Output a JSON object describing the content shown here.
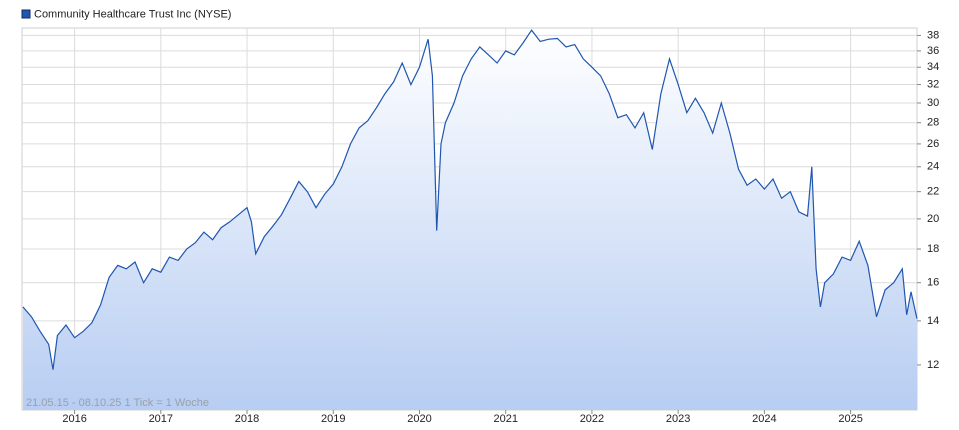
{
  "chart_data": {
    "type": "area",
    "legend": "Community Healthcare Trust Inc (NYSE)",
    "annotation": "21.05.15 - 08.10.25   1 Tick = 1 Woche",
    "color": "#1f56b0",
    "log_scale": true,
    "grid": true,
    "x": [
      2015.4,
      2015.5,
      2015.6,
      2015.7,
      2015.75,
      2015.8,
      2015.9,
      2016.0,
      2016.1,
      2016.2,
      2016.3,
      2016.4,
      2016.5,
      2016.6,
      2016.7,
      2016.8,
      2016.9,
      2017.0,
      2017.1,
      2017.2,
      2017.3,
      2017.4,
      2017.5,
      2017.6,
      2017.7,
      2017.8,
      2017.9,
      2018.0,
      2018.05,
      2018.1,
      2018.2,
      2018.3,
      2018.4,
      2018.5,
      2018.6,
      2018.7,
      2018.8,
      2018.9,
      2019.0,
      2019.1,
      2019.2,
      2019.3,
      2019.4,
      2019.5,
      2019.6,
      2019.7,
      2019.8,
      2019.9,
      2020.0,
      2020.1,
      2020.15,
      2020.2,
      2020.25,
      2020.3,
      2020.4,
      2020.5,
      2020.6,
      2020.7,
      2020.8,
      2020.9,
      2021.0,
      2021.1,
      2021.2,
      2021.3,
      2021.4,
      2021.5,
      2021.6,
      2021.7,
      2021.8,
      2021.9,
      2022.0,
      2022.1,
      2022.2,
      2022.3,
      2022.4,
      2022.5,
      2022.6,
      2022.7,
      2022.8,
      2022.9,
      2023.0,
      2023.1,
      2023.2,
      2023.3,
      2023.4,
      2023.5,
      2023.6,
      2023.7,
      2023.8,
      2023.9,
      2024.0,
      2024.1,
      2024.2,
      2024.3,
      2024.4,
      2024.5,
      2024.55,
      2024.6,
      2024.65,
      2024.7,
      2024.8,
      2024.9,
      2025.0,
      2025.1,
      2025.2,
      2025.3,
      2025.4,
      2025.5,
      2025.6,
      2025.65,
      2025.7,
      2025.77
    ],
    "values": [
      14.7,
      14.2,
      13.5,
      12.9,
      11.8,
      13.3,
      13.8,
      13.2,
      13.5,
      13.9,
      14.8,
      16.3,
      17.0,
      16.8,
      17.2,
      16.0,
      16.8,
      16.6,
      17.5,
      17.3,
      18.0,
      18.4,
      19.1,
      18.6,
      19.4,
      19.8,
      20.3,
      20.8,
      19.8,
      17.7,
      18.8,
      19.5,
      20.3,
      21.5,
      22.8,
      22.0,
      20.8,
      21.8,
      22.6,
      24.0,
      26.0,
      27.5,
      28.2,
      29.5,
      31.0,
      32.3,
      34.5,
      32.0,
      34.0,
      37.5,
      33.0,
      19.2,
      26.0,
      28.0,
      30.0,
      33.0,
      35.0,
      36.5,
      35.5,
      34.5,
      36.0,
      35.5,
      37.0,
      38.7,
      37.2,
      37.5,
      37.6,
      36.5,
      36.8,
      35.0,
      34.0,
      33.0,
      31.0,
      28.5,
      28.8,
      27.5,
      29.0,
      25.5,
      31.0,
      35.0,
      32.0,
      29.0,
      30.5,
      29.0,
      27.0,
      30.0,
      27.0,
      23.8,
      22.5,
      23.0,
      22.2,
      23.0,
      21.5,
      22.0,
      20.5,
      20.2,
      24.0,
      16.8,
      14.7,
      16.0,
      16.5,
      17.5,
      17.3,
      18.5,
      17.0,
      14.2,
      15.6,
      16.0,
      16.8,
      14.3,
      15.5,
      14.1
    ],
    "xlim": [
      2015.39,
      2025.77
    ],
    "xticks": [
      2016,
      2017,
      2018,
      2019,
      2020,
      2021,
      2022,
      2023,
      2024,
      2025
    ],
    "ylim": [
      10.25,
      39
    ],
    "yticks": [
      12,
      14,
      16,
      18,
      20,
      22,
      24,
      26,
      28,
      30,
      32,
      34,
      36,
      38
    ]
  }
}
